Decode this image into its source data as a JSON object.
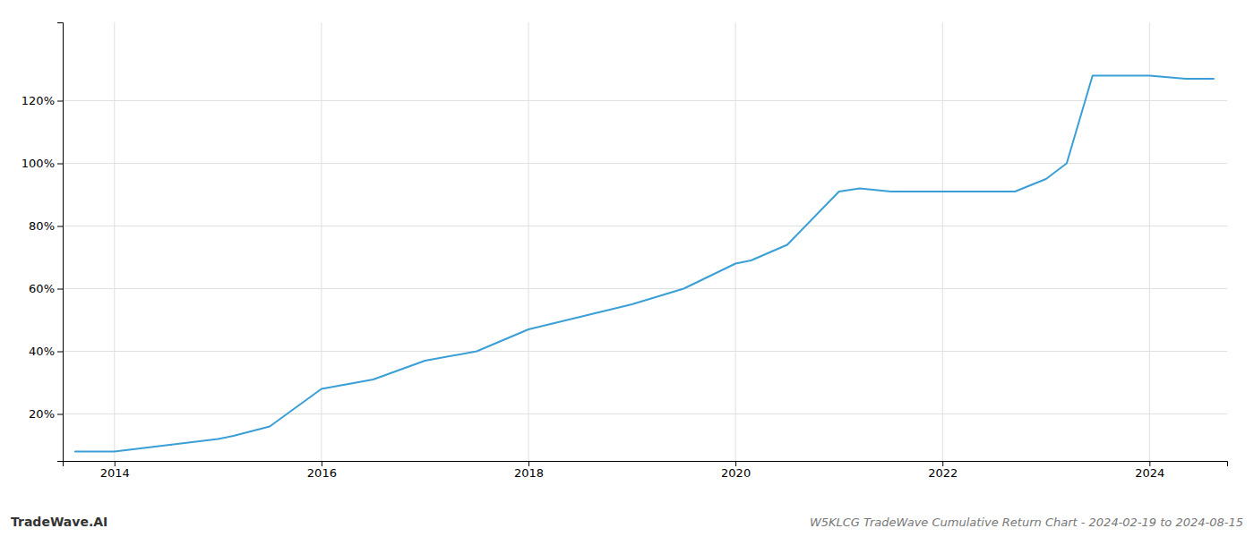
{
  "chart_data": {
    "type": "line",
    "title": "W5KLCG TradeWave Cumulative Return Chart - 2024-02-19 to 2024-08-15",
    "annotations": [
      "TradeWave.AI"
    ],
    "color": "#3a9fd6",
    "grid": true,
    "x": [
      2013.62,
      2014.0,
      2014.5,
      2015.0,
      2015.15,
      2015.5,
      2016.0,
      2016.5,
      2017.0,
      2017.5,
      2018.0,
      2018.5,
      2019.0,
      2019.5,
      2020.0,
      2020.15,
      2020.5,
      2021.0,
      2021.2,
      2021.5,
      2021.7,
      2022.0,
      2022.2,
      2022.5,
      2022.7,
      2023.0,
      2023.2,
      2023.45,
      2024.0,
      2024.35,
      2024.62
    ],
    "values": [
      8,
      8,
      10,
      12,
      13,
      16,
      28,
      31,
      37,
      40,
      47,
      51,
      55,
      60,
      68,
      69,
      74,
      91,
      92,
      91,
      91,
      91,
      91,
      91,
      91,
      95,
      100,
      128,
      128,
      127,
      127
    ],
    "xlim": [
      2013.5,
      2024.75
    ],
    "ylim": [
      5,
      145
    ],
    "xticks": [
      2014,
      2016,
      2018,
      2020,
      2022,
      2024
    ],
    "yticks": [
      {
        "value": 20,
        "label": "20%"
      },
      {
        "value": 40,
        "label": "40%"
      },
      {
        "value": 60,
        "label": "60%"
      },
      {
        "value": 80,
        "label": "80%"
      },
      {
        "value": 100,
        "label": "100%"
      },
      {
        "value": 120,
        "label": "120%"
      }
    ]
  }
}
